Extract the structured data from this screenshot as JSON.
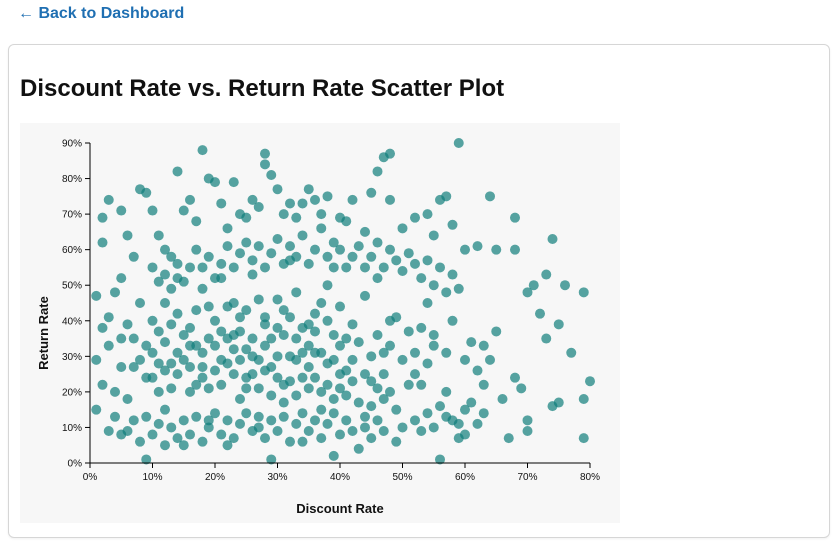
{
  "nav": {
    "back_label": "← Back to Dashboard"
  },
  "chart_data": {
    "type": "scatter",
    "title": "Discount Rate vs. Return Rate Scatter Plot",
    "xlabel": "Discount Rate",
    "ylabel": "Return Rate",
    "xlim": [
      0,
      0.8
    ],
    "ylim": [
      0,
      0.9
    ],
    "x_ticks": [
      0,
      0.1,
      0.2,
      0.3,
      0.4,
      0.5,
      0.6,
      0.7,
      0.8
    ],
    "x_tick_labels": [
      "0%",
      "10%",
      "20%",
      "30%",
      "40%",
      "50%",
      "60%",
      "70%",
      "80%"
    ],
    "y_ticks": [
      0,
      0.1,
      0.2,
      0.3,
      0.4,
      0.5,
      0.6,
      0.7,
      0.8,
      0.9
    ],
    "y_tick_labels": [
      "0%",
      "10%",
      "20%",
      "30%",
      "40%",
      "50%",
      "60%",
      "70%",
      "80%",
      "90%"
    ],
    "grid": false,
    "point_color": "#0f7d7a",
    "point_opacity": 0.7,
    "points": [
      [
        0.01,
        0.47
      ],
      [
        0.02,
        0.62
      ],
      [
        0.03,
        0.41
      ],
      [
        0.02,
        0.22
      ],
      [
        0.04,
        0.13
      ],
      [
        0.01,
        0.29
      ],
      [
        0.03,
        0.33
      ],
      [
        0.05,
        0.52
      ],
      [
        0.04,
        0.48
      ],
      [
        0.06,
        0.18
      ],
      [
        0.02,
        0.69
      ],
      [
        0.03,
        0.74
      ],
      [
        0.05,
        0.71
      ],
      [
        0.06,
        0.64
      ],
      [
        0.07,
        0.58
      ],
      [
        0.08,
        0.77
      ],
      [
        0.09,
        0.76
      ],
      [
        0.1,
        0.71
      ],
      [
        0.11,
        0.64
      ],
      [
        0.12,
        0.6
      ],
      [
        0.13,
        0.58
      ],
      [
        0.14,
        0.82
      ],
      [
        0.15,
        0.71
      ],
      [
        0.16,
        0.74
      ],
      [
        0.17,
        0.68
      ],
      [
        0.18,
        0.88
      ],
      [
        0.19,
        0.8
      ],
      [
        0.2,
        0.79
      ],
      [
        0.21,
        0.73
      ],
      [
        0.22,
        0.66
      ],
      [
        0.23,
        0.79
      ],
      [
        0.24,
        0.7
      ],
      [
        0.25,
        0.69
      ],
      [
        0.26,
        0.74
      ],
      [
        0.27,
        0.72
      ],
      [
        0.28,
        0.84
      ],
      [
        0.28,
        0.87
      ],
      [
        0.29,
        0.81
      ],
      [
        0.3,
        0.77
      ],
      [
        0.31,
        0.7
      ],
      [
        0.32,
        0.73
      ],
      [
        0.33,
        0.69
      ],
      [
        0.34,
        0.73
      ],
      [
        0.35,
        0.77
      ],
      [
        0.36,
        0.74
      ],
      [
        0.37,
        0.7
      ],
      [
        0.38,
        0.75
      ],
      [
        0.39,
        0.62
      ],
      [
        0.4,
        0.69
      ],
      [
        0.41,
        0.68
      ],
      [
        0.42,
        0.74
      ],
      [
        0.44,
        0.65
      ],
      [
        0.45,
        0.76
      ],
      [
        0.46,
        0.82
      ],
      [
        0.47,
        0.86
      ],
      [
        0.48,
        0.87
      ],
      [
        0.48,
        0.74
      ],
      [
        0.5,
        0.66
      ],
      [
        0.52,
        0.69
      ],
      [
        0.54,
        0.7
      ],
      [
        0.55,
        0.64
      ],
      [
        0.56,
        0.74
      ],
      [
        0.57,
        0.75
      ],
      [
        0.58,
        0.67
      ],
      [
        0.59,
        0.9
      ],
      [
        0.6,
        0.6
      ],
      [
        0.62,
        0.61
      ],
      [
        0.64,
        0.75
      ],
      [
        0.65,
        0.6
      ],
      [
        0.68,
        0.69
      ],
      [
        0.68,
        0.6
      ],
      [
        0.7,
        0.48
      ],
      [
        0.71,
        0.5
      ],
      [
        0.73,
        0.53
      ],
      [
        0.74,
        0.63
      ],
      [
        0.76,
        0.5
      ],
      [
        0.79,
        0.48
      ],
      [
        0.72,
        0.42
      ],
      [
        0.73,
        0.35
      ],
      [
        0.75,
        0.39
      ],
      [
        0.77,
        0.31
      ],
      [
        0.74,
        0.16
      ],
      [
        0.75,
        0.17
      ],
      [
        0.79,
        0.18
      ],
      [
        0.8,
        0.23
      ],
      [
        0.79,
        0.07
      ],
      [
        0.7,
        0.09
      ],
      [
        0.7,
        0.12
      ],
      [
        0.69,
        0.21
      ],
      [
        0.68,
        0.24
      ],
      [
        0.67,
        0.07
      ],
      [
        0.66,
        0.18
      ],
      [
        0.65,
        0.37
      ],
      [
        0.64,
        0.29
      ],
      [
        0.63,
        0.33
      ],
      [
        0.62,
        0.26
      ],
      [
        0.61,
        0.17
      ],
      [
        0.6,
        0.15
      ],
      [
        0.59,
        0.07
      ],
      [
        0.58,
        0.12
      ],
      [
        0.57,
        0.2
      ],
      [
        0.56,
        0.16
      ],
      [
        0.56,
        0.01
      ],
      [
        0.55,
        0.33
      ],
      [
        0.54,
        0.45
      ],
      [
        0.53,
        0.38
      ],
      [
        0.52,
        0.25
      ],
      [
        0.51,
        0.22
      ],
      [
        0.5,
        0.1
      ],
      [
        0.49,
        0.06
      ],
      [
        0.48,
        0.4
      ],
      [
        0.47,
        0.31
      ],
      [
        0.46,
        0.52
      ],
      [
        0.45,
        0.23
      ],
      [
        0.44,
        0.13
      ],
      [
        0.43,
        0.04
      ],
      [
        0.42,
        0.29
      ],
      [
        0.41,
        0.35
      ],
      [
        0.4,
        0.21
      ],
      [
        0.39,
        0.02
      ],
      [
        0.38,
        0.5
      ],
      [
        0.37,
        0.15
      ],
      [
        0.36,
        0.42
      ],
      [
        0.35,
        0.27
      ],
      [
        0.34,
        0.06
      ],
      [
        0.33,
        0.35
      ],
      [
        0.32,
        0.57
      ],
      [
        0.31,
        0.22
      ],
      [
        0.3,
        0.46
      ],
      [
        0.29,
        0.01
      ],
      [
        0.28,
        0.39
      ],
      [
        0.27,
        0.1
      ],
      [
        0.26,
        0.53
      ],
      [
        0.25,
        0.32
      ],
      [
        0.24,
        0.18
      ],
      [
        0.23,
        0.45
      ],
      [
        0.22,
        0.05
      ],
      [
        0.21,
        0.37
      ],
      [
        0.2,
        0.26
      ],
      [
        0.19,
        0.12
      ],
      [
        0.18,
        0.49
      ],
      [
        0.17,
        0.33
      ],
      [
        0.16,
        0.2
      ],
      [
        0.15,
        0.05
      ],
      [
        0.14,
        0.42
      ],
      [
        0.13,
        0.28
      ],
      [
        0.12,
        0.15
      ],
      [
        0.11,
        0.37
      ],
      [
        0.1,
        0.24
      ],
      [
        0.09,
        0.01
      ],
      [
        0.08,
        0.45
      ],
      [
        0.07,
        0.27
      ],
      [
        0.06,
        0.09
      ],
      [
        0.05,
        0.35
      ],
      [
        0.04,
        0.2
      ],
      [
        0.03,
        0.09
      ],
      [
        0.02,
        0.38
      ],
      [
        0.01,
        0.15
      ],
      [
        0.12,
        0.45
      ],
      [
        0.14,
        0.52
      ],
      [
        0.16,
        0.38
      ],
      [
        0.18,
        0.31
      ],
      [
        0.19,
        0.44
      ],
      [
        0.21,
        0.52
      ],
      [
        0.22,
        0.28
      ],
      [
        0.23,
        0.36
      ],
      [
        0.24,
        0.41
      ],
      [
        0.25,
        0.24
      ],
      [
        0.26,
        0.3
      ],
      [
        0.27,
        0.46
      ],
      [
        0.28,
        0.33
      ],
      [
        0.29,
        0.27
      ],
      [
        0.3,
        0.38
      ],
      [
        0.31,
        0.43
      ],
      [
        0.32,
        0.3
      ],
      [
        0.33,
        0.48
      ],
      [
        0.34,
        0.24
      ],
      [
        0.35,
        0.39
      ],
      [
        0.36,
        0.31
      ],
      [
        0.37,
        0.45
      ],
      [
        0.38,
        0.28
      ],
      [
        0.39,
        0.36
      ],
      [
        0.4,
        0.44
      ],
      [
        0.41,
        0.26
      ],
      [
        0.42,
        0.39
      ],
      [
        0.43,
        0.34
      ],
      [
        0.44,
        0.47
      ],
      [
        0.45,
        0.3
      ],
      [
        0.46,
        0.36
      ],
      [
        0.47,
        0.25
      ],
      [
        0.48,
        0.33
      ],
      [
        0.49,
        0.41
      ],
      [
        0.5,
        0.29
      ],
      [
        0.51,
        0.37
      ],
      [
        0.52,
        0.31
      ],
      [
        0.53,
        0.22
      ],
      [
        0.54,
        0.28
      ],
      [
        0.55,
        0.36
      ],
      [
        0.57,
        0.31
      ],
      [
        0.58,
        0.4
      ],
      [
        0.6,
        0.29
      ],
      [
        0.61,
        0.34
      ],
      [
        0.63,
        0.22
      ],
      [
        0.09,
        0.33
      ],
      [
        0.1,
        0.4
      ],
      [
        0.11,
        0.28
      ],
      [
        0.12,
        0.34
      ],
      [
        0.13,
        0.39
      ],
      [
        0.14,
        0.31
      ],
      [
        0.15,
        0.36
      ],
      [
        0.16,
        0.27
      ],
      [
        0.17,
        0.43
      ],
      [
        0.18,
        0.24
      ],
      [
        0.19,
        0.35
      ],
      [
        0.2,
        0.4
      ],
      [
        0.21,
        0.29
      ],
      [
        0.22,
        0.44
      ],
      [
        0.23,
        0.32
      ],
      [
        0.24,
        0.37
      ],
      [
        0.25,
        0.43
      ],
      [
        0.26,
        0.35
      ],
      [
        0.27,
        0.29
      ],
      [
        0.28,
        0.41
      ],
      [
        0.29,
        0.35
      ],
      [
        0.3,
        0.3
      ],
      [
        0.31,
        0.36
      ],
      [
        0.32,
        0.41
      ],
      [
        0.33,
        0.29
      ],
      [
        0.34,
        0.38
      ],
      [
        0.35,
        0.33
      ],
      [
        0.36,
        0.37
      ],
      [
        0.37,
        0.31
      ],
      [
        0.38,
        0.4
      ],
      [
        0.39,
        0.29
      ],
      [
        0.4,
        0.33
      ],
      [
        0.05,
        0.27
      ],
      [
        0.06,
        0.39
      ],
      [
        0.07,
        0.35
      ],
      [
        0.08,
        0.29
      ],
      [
        0.09,
        0.24
      ],
      [
        0.1,
        0.31
      ],
      [
        0.11,
        0.2
      ],
      [
        0.12,
        0.26
      ],
      [
        0.13,
        0.21
      ],
      [
        0.14,
        0.25
      ],
      [
        0.15,
        0.29
      ],
      [
        0.16,
        0.33
      ],
      [
        0.17,
        0.22
      ],
      [
        0.18,
        0.27
      ],
      [
        0.19,
        0.21
      ],
      [
        0.2,
        0.33
      ],
      [
        0.21,
        0.22
      ],
      [
        0.22,
        0.35
      ],
      [
        0.23,
        0.25
      ],
      [
        0.24,
        0.29
      ],
      [
        0.25,
        0.21
      ],
      [
        0.26,
        0.25
      ],
      [
        0.27,
        0.21
      ],
      [
        0.28,
        0.26
      ],
      [
        0.29,
        0.19
      ],
      [
        0.3,
        0.24
      ],
      [
        0.31,
        0.17
      ],
      [
        0.32,
        0.23
      ],
      [
        0.33,
        0.19
      ],
      [
        0.34,
        0.31
      ],
      [
        0.35,
        0.21
      ],
      [
        0.36,
        0.24
      ],
      [
        0.37,
        0.2
      ],
      [
        0.38,
        0.22
      ],
      [
        0.39,
        0.18
      ],
      [
        0.4,
        0.25
      ],
      [
        0.41,
        0.19
      ],
      [
        0.42,
        0.23
      ],
      [
        0.43,
        0.17
      ],
      [
        0.44,
        0.25
      ],
      [
        0.45,
        0.16
      ],
      [
        0.46,
        0.21
      ],
      [
        0.47,
        0.18
      ],
      [
        0.48,
        0.2
      ],
      [
        0.49,
        0.15
      ],
      [
        0.1,
        0.55
      ],
      [
        0.11,
        0.51
      ],
      [
        0.12,
        0.53
      ],
      [
        0.13,
        0.49
      ],
      [
        0.14,
        0.56
      ],
      [
        0.15,
        0.51
      ],
      [
        0.16,
        0.55
      ],
      [
        0.17,
        0.6
      ],
      [
        0.18,
        0.55
      ],
      [
        0.19,
        0.58
      ],
      [
        0.2,
        0.52
      ],
      [
        0.21,
        0.56
      ],
      [
        0.22,
        0.61
      ],
      [
        0.23,
        0.55
      ],
      [
        0.24,
        0.59
      ],
      [
        0.25,
        0.62
      ],
      [
        0.26,
        0.57
      ],
      [
        0.27,
        0.61
      ],
      [
        0.28,
        0.55
      ],
      [
        0.29,
        0.59
      ],
      [
        0.3,
        0.63
      ],
      [
        0.31,
        0.56
      ],
      [
        0.32,
        0.61
      ],
      [
        0.33,
        0.58
      ],
      [
        0.34,
        0.64
      ],
      [
        0.35,
        0.56
      ],
      [
        0.36,
        0.6
      ],
      [
        0.37,
        0.66
      ],
      [
        0.38,
        0.58
      ],
      [
        0.39,
        0.55
      ],
      [
        0.4,
        0.6
      ],
      [
        0.41,
        0.55
      ],
      [
        0.42,
        0.58
      ],
      [
        0.43,
        0.61
      ],
      [
        0.44,
        0.55
      ],
      [
        0.45,
        0.58
      ],
      [
        0.46,
        0.62
      ],
      [
        0.47,
        0.55
      ],
      [
        0.48,
        0.6
      ],
      [
        0.49,
        0.57
      ],
      [
        0.5,
        0.54
      ],
      [
        0.51,
        0.59
      ],
      [
        0.52,
        0.56
      ],
      [
        0.53,
        0.52
      ],
      [
        0.54,
        0.57
      ],
      [
        0.55,
        0.5
      ],
      [
        0.56,
        0.55
      ],
      [
        0.57,
        0.48
      ],
      [
        0.58,
        0.53
      ],
      [
        0.59,
        0.49
      ],
      [
        0.05,
        0.08
      ],
      [
        0.07,
        0.12
      ],
      [
        0.08,
        0.06
      ],
      [
        0.09,
        0.13
      ],
      [
        0.1,
        0.08
      ],
      [
        0.11,
        0.11
      ],
      [
        0.12,
        0.05
      ],
      [
        0.13,
        0.1
      ],
      [
        0.14,
        0.07
      ],
      [
        0.15,
        0.12
      ],
      [
        0.16,
        0.08
      ],
      [
        0.17,
        0.13
      ],
      [
        0.18,
        0.06
      ],
      [
        0.19,
        0.1
      ],
      [
        0.2,
        0.14
      ],
      [
        0.21,
        0.08
      ],
      [
        0.22,
        0.12
      ],
      [
        0.23,
        0.07
      ],
      [
        0.24,
        0.11
      ],
      [
        0.25,
        0.14
      ],
      [
        0.26,
        0.09
      ],
      [
        0.27,
        0.13
      ],
      [
        0.28,
        0.07
      ],
      [
        0.29,
        0.12
      ],
      [
        0.3,
        0.09
      ],
      [
        0.31,
        0.13
      ],
      [
        0.32,
        0.06
      ],
      [
        0.33,
        0.11
      ],
      [
        0.34,
        0.14
      ],
      [
        0.35,
        0.09
      ],
      [
        0.36,
        0.12
      ],
      [
        0.37,
        0.07
      ],
      [
        0.38,
        0.11
      ],
      [
        0.39,
        0.14
      ],
      [
        0.4,
        0.08
      ],
      [
        0.41,
        0.12
      ],
      [
        0.42,
        0.09
      ],
      [
        0.44,
        0.1
      ],
      [
        0.45,
        0.07
      ],
      [
        0.46,
        0.12
      ],
      [
        0.47,
        0.09
      ],
      [
        0.52,
        0.12
      ],
      [
        0.53,
        0.09
      ],
      [
        0.54,
        0.14
      ],
      [
        0.55,
        0.1
      ],
      [
        0.57,
        0.13
      ],
      [
        0.59,
        0.11
      ],
      [
        0.6,
        0.08
      ],
      [
        0.62,
        0.11
      ],
      [
        0.63,
        0.14
      ]
    ]
  }
}
